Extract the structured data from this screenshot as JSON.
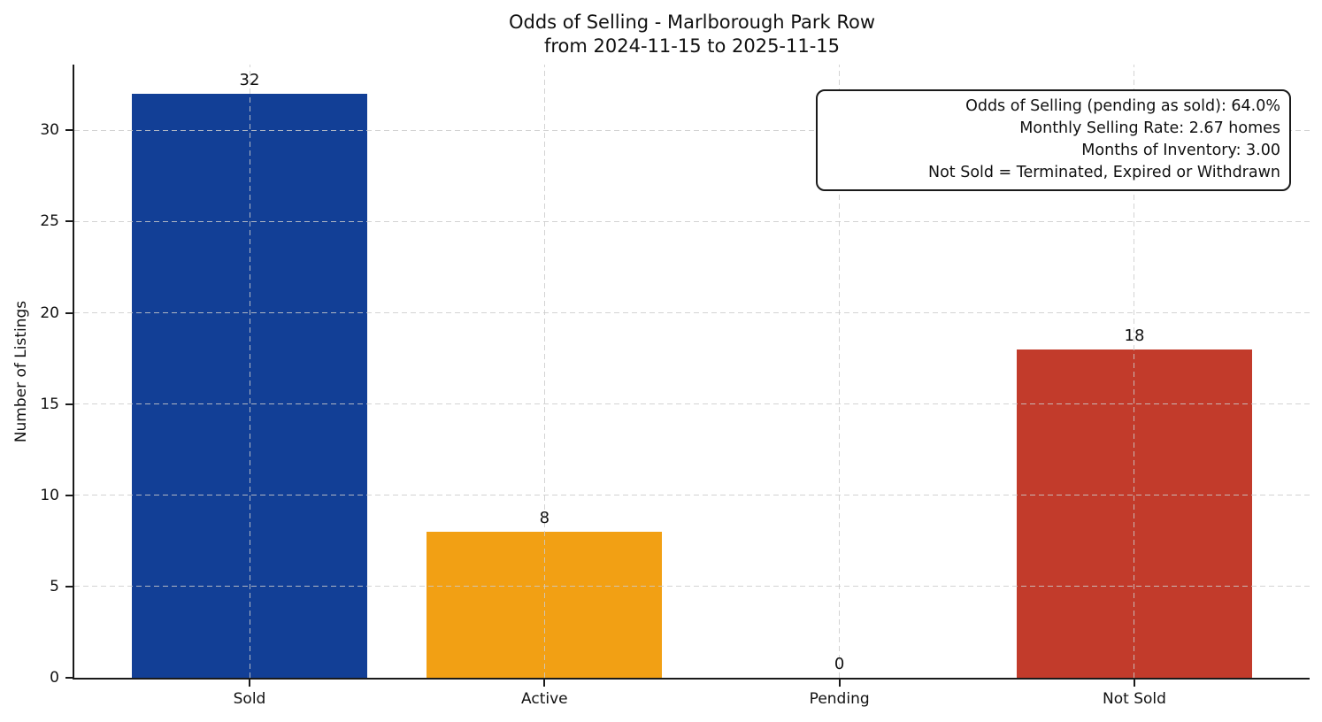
{
  "chart_data": {
    "type": "bar",
    "title_lines": [
      "Odds of Selling - Marlborough Park Row",
      "from 2024-11-15 to 2025-11-15"
    ],
    "categories": [
      "Sold",
      "Active",
      "Pending",
      "Not Sold"
    ],
    "values": [
      32,
      8,
      0,
      18
    ],
    "value_labels": [
      "32",
      "8",
      "0",
      "18"
    ],
    "bar_colors": [
      "#123f96",
      "#f2a014",
      null,
      "#c23b2b"
    ],
    "ylabel": "Number of Listings",
    "xlabel": "",
    "yticks": [
      0,
      5,
      10,
      15,
      20,
      25,
      30
    ],
    "ylim": [
      0,
      33.6
    ],
    "grid": true,
    "legend_position": "none",
    "annotation": {
      "lines": [
        "Odds of Selling (pending as sold): 64.0%",
        "Monthly Selling Rate: 2.67 homes",
        "Months of Inventory: 3.00",
        "Not Sold = Terminated, Expired or Withdrawn"
      ]
    }
  },
  "colors": {
    "sold_bar": "#123f96",
    "active_bar": "#f2a014",
    "not_sold_bar": "#c23b2b",
    "axis": "#1a1a1a",
    "grid": "#cbcbcb",
    "background": "#ffffff",
    "text": "#111111"
  }
}
